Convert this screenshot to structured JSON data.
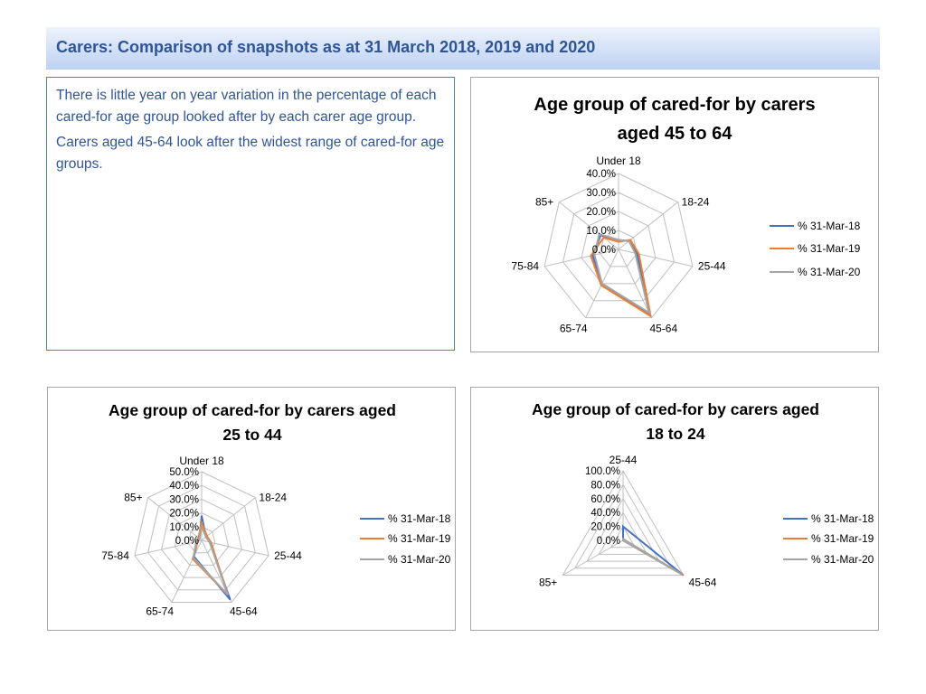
{
  "header": {
    "title": "Carers: Comparison of snapshots as at 31 March 2018, 2019 and 2020"
  },
  "summary": {
    "para1": "There is little year on year variation in the percentage of each cared-for age group looked after by each carer age group.",
    "para2": "Carers aged 45-64 look after the widest range of cared-for age groups."
  },
  "colors": {
    "s18": "#4472c4",
    "s19": "#ed7d31",
    "s20": "#a5a5a5",
    "grid": "#bfbfbf"
  },
  "chart_data": [
    {
      "type": "radar",
      "title_line1": "Age group of cared-for by carers",
      "title_line2": "aged 45 to 64",
      "categories": [
        "Under 18",
        "18-24",
        "25-44",
        "45-64",
        "65-74",
        "75-84",
        "85+"
      ],
      "ticks": [
        "0.0%",
        "10.0%",
        "20.0%",
        "30.0%",
        "40.0%"
      ],
      "rmax": 40,
      "series": [
        {
          "name": "% 31-Mar-18",
          "values": [
            5,
            7,
            10,
            38,
            20,
            14,
            12
          ]
        },
        {
          "name": "% 31-Mar-19",
          "values": [
            4,
            8,
            11,
            39,
            21,
            15,
            10
          ]
        },
        {
          "name": "% 31-Mar-20",
          "values": [
            5,
            7,
            9,
            37,
            20,
            13,
            13
          ]
        }
      ],
      "legend": "right"
    },
    {
      "type": "radar",
      "title_line1": "Age group of cared-for by carers aged",
      "title_line2": "25 to 44",
      "categories": [
        "Under 18",
        "18-24",
        "25-44",
        "45-64",
        "65-74",
        "75-84",
        "85+"
      ],
      "ticks": [
        "0.0%",
        "10.0%",
        "20.0%",
        "30.0%",
        "40.0%",
        "50.0%"
      ],
      "rmax": 50,
      "series": [
        {
          "name": "% 31-Mar-18",
          "values": [
            18,
            4,
            6,
            48,
            13,
            3,
            2
          ]
        },
        {
          "name": "% 31-Mar-19",
          "values": [
            13,
            5,
            7,
            44,
            15,
            3,
            3
          ]
        },
        {
          "name": "% 31-Mar-20",
          "values": [
            10,
            4,
            6,
            44,
            14,
            4,
            2
          ]
        }
      ],
      "legend": "right"
    },
    {
      "type": "radar",
      "title_line1": "Age group of cared-for by carers aged",
      "title_line2": "18 to 24",
      "categories": [
        "25-44",
        "45-64",
        "85+"
      ],
      "ticks": [
        "0.0%",
        "20.0%",
        "40.0%",
        "60.0%",
        "80.0%",
        "100.0%"
      ],
      "rmax": 100,
      "series": [
        {
          "name": "% 31-Mar-18",
          "values": [
            20,
            100,
            0
          ]
        },
        {
          "name": "% 31-Mar-19",
          "values": [
            2,
            100,
            0
          ]
        },
        {
          "name": "% 31-Mar-20",
          "values": [
            2,
            98,
            0
          ]
        }
      ],
      "legend": "right"
    }
  ]
}
